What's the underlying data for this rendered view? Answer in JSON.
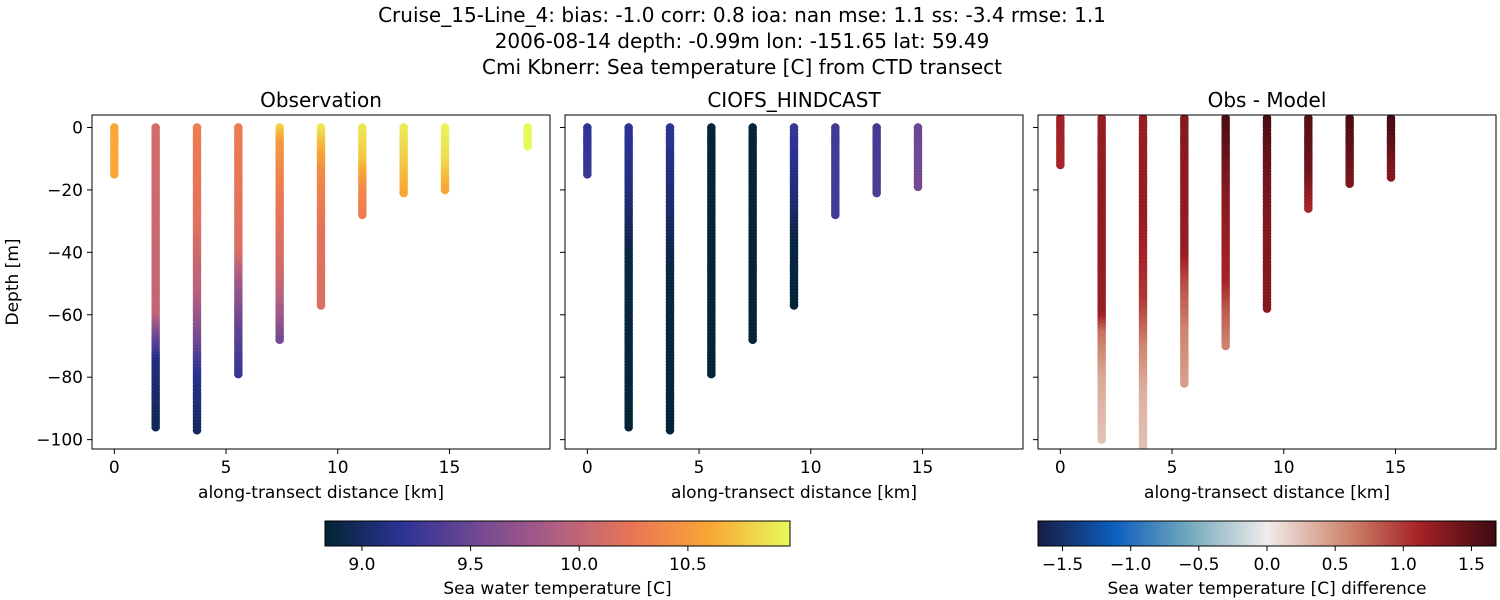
{
  "figure": {
    "title_lines": [
      "Cruise_15-Line_4: bias: -1.0  corr: 0.8  ioa: nan  mse: 1.1  ss: -3.4  rmse: 1.1",
      "2006-08-14 depth: -0.99m lon: -151.65 lat: 59.49",
      "Cmi Kbnerr: Sea temperature [C] from CTD transect"
    ]
  },
  "chart_data": [
    {
      "type": "scatter",
      "title": "Observation",
      "xlabel": "along-transect distance [km]",
      "ylabel": "Depth [m]",
      "xlim": [
        -1,
        19.5
      ],
      "ylim": [
        -103,
        4
      ],
      "xticks": [
        0,
        5,
        10,
        15
      ],
      "yticks": [
        0,
        -20,
        -40,
        -60,
        -80,
        -100
      ],
      "colormap": "thermal",
      "clim": [
        8.83,
        10.97
      ],
      "profiles": [
        {
          "x": 0.0,
          "max_depth": -15,
          "stops": [
            [
              0,
              10.6
            ],
            [
              -15,
              10.6
            ]
          ]
        },
        {
          "x": 1.85,
          "max_depth": -96,
          "stops": [
            [
              0,
              10.1
            ],
            [
              -60,
              10.0
            ],
            [
              -66,
              9.6
            ],
            [
              -75,
              9.1
            ],
            [
              -96,
              8.95
            ]
          ]
        },
        {
          "x": 3.7,
          "max_depth": -97,
          "stops": [
            [
              0,
              10.3
            ],
            [
              -30,
              10.2
            ],
            [
              -55,
              9.9
            ],
            [
              -70,
              9.5
            ],
            [
              -80,
              9.15
            ],
            [
              -97,
              9.0
            ]
          ]
        },
        {
          "x": 5.55,
          "max_depth": -79,
          "stops": [
            [
              0,
              10.3
            ],
            [
              -40,
              10.15
            ],
            [
              -50,
              9.8
            ],
            [
              -65,
              9.45
            ],
            [
              -79,
              9.25
            ]
          ]
        },
        {
          "x": 7.4,
          "max_depth": -68,
          "stops": [
            [
              0,
              10.8
            ],
            [
              -5,
              10.5
            ],
            [
              -20,
              10.3
            ],
            [
              -50,
              10.05
            ],
            [
              -60,
              9.8
            ],
            [
              -68,
              9.55
            ]
          ]
        },
        {
          "x": 9.25,
          "max_depth": -57,
          "stops": [
            [
              0,
              10.9
            ],
            [
              -5,
              10.7
            ],
            [
              -15,
              10.4
            ],
            [
              -35,
              10.2
            ],
            [
              -57,
              10.15
            ]
          ]
        },
        {
          "x": 11.1,
          "max_depth": -28,
          "stops": [
            [
              0,
              10.9
            ],
            [
              -10,
              10.75
            ],
            [
              -20,
              10.4
            ],
            [
              -28,
              10.3
            ]
          ]
        },
        {
          "x": 12.95,
          "max_depth": -21,
          "stops": [
            [
              0,
              10.9
            ],
            [
              -8,
              10.8
            ],
            [
              -21,
              10.6
            ]
          ]
        },
        {
          "x": 14.8,
          "max_depth": -20,
          "stops": [
            [
              0,
              10.95
            ],
            [
              -10,
              10.85
            ],
            [
              -20,
              10.6
            ]
          ]
        },
        {
          "x": 18.5,
          "max_depth": -6,
          "stops": [
            [
              0,
              10.97
            ],
            [
              -6,
              10.97
            ]
          ]
        }
      ]
    },
    {
      "type": "scatter",
      "title": "CIOFS_HINDCAST",
      "xlabel": "along-transect distance [km]",
      "xlim": [
        -1,
        19.5
      ],
      "ylim": [
        -103,
        4
      ],
      "xticks": [
        0,
        5,
        10,
        15
      ],
      "colormap": "thermal",
      "clim": [
        8.83,
        10.97
      ],
      "profiles": [
        {
          "x": 0.0,
          "max_depth": -15,
          "stops": [
            [
              0,
              9.2
            ],
            [
              -15,
              9.25
            ]
          ]
        },
        {
          "x": 1.85,
          "max_depth": -96,
          "stops": [
            [
              0,
              9.2
            ],
            [
              -20,
              9.1
            ],
            [
              -40,
              8.9
            ],
            [
              -96,
              8.85
            ]
          ]
        },
        {
          "x": 3.7,
          "max_depth": -97,
          "stops": [
            [
              0,
              9.2
            ],
            [
              -25,
              9.05
            ],
            [
              -45,
              8.9
            ],
            [
              -97,
              8.85
            ]
          ]
        },
        {
          "x": 5.55,
          "max_depth": -79,
          "stops": [
            [
              0,
              8.85
            ],
            [
              -79,
              8.85
            ]
          ]
        },
        {
          "x": 7.4,
          "max_depth": -68,
          "stops": [
            [
              0,
              8.85
            ],
            [
              -68,
              8.85
            ]
          ]
        },
        {
          "x": 9.25,
          "max_depth": -57,
          "stops": [
            [
              0,
              9.25
            ],
            [
              -25,
              9.05
            ],
            [
              -35,
              8.9
            ],
            [
              -57,
              8.85
            ]
          ]
        },
        {
          "x": 11.1,
          "max_depth": -28,
          "stops": [
            [
              0,
              9.3
            ],
            [
              -28,
              9.3
            ]
          ]
        },
        {
          "x": 12.95,
          "max_depth": -21,
          "stops": [
            [
              0,
              9.3
            ],
            [
              -21,
              9.35
            ]
          ]
        },
        {
          "x": 14.8,
          "max_depth": -19,
          "stops": [
            [
              0,
              9.5
            ],
            [
              -19,
              9.55
            ]
          ]
        }
      ]
    },
    {
      "type": "scatter",
      "title": "Obs - Model",
      "xlabel": "along-transect distance [km]",
      "xlim": [
        -1,
        19.5
      ],
      "ylim": [
        -103,
        4
      ],
      "xticks": [
        0,
        5,
        10,
        15
      ],
      "colormap": "balance",
      "clim": [
        -1.68,
        1.68
      ],
      "profiles": [
        {
          "x": 0.0,
          "max_depth": -12,
          "stops": [
            [
              3,
              1.15
            ],
            [
              -12,
              1.1
            ]
          ]
        },
        {
          "x": 1.85,
          "max_depth": -100,
          "stops": [
            [
              3,
              1.2
            ],
            [
              -30,
              1.25
            ],
            [
              -60,
              1.2
            ],
            [
              -66,
              0.7
            ],
            [
              -80,
              0.4
            ],
            [
              -100,
              0.25
            ]
          ]
        },
        {
          "x": 3.7,
          "max_depth": -104,
          "stops": [
            [
              3,
              1.2
            ],
            [
              -30,
              1.2
            ],
            [
              -55,
              1.0
            ],
            [
              -70,
              0.6
            ],
            [
              -85,
              0.35
            ],
            [
              -104,
              0.25
            ]
          ]
        },
        {
          "x": 5.55,
          "max_depth": -82,
          "stops": [
            [
              3,
              1.3
            ],
            [
              -40,
              1.2
            ],
            [
              -50,
              0.9
            ],
            [
              -65,
              0.6
            ],
            [
              -82,
              0.45
            ]
          ]
        },
        {
          "x": 7.4,
          "max_depth": -70,
          "stops": [
            [
              3,
              1.6
            ],
            [
              -5,
              1.5
            ],
            [
              -20,
              1.3
            ],
            [
              -50,
              1.1
            ],
            [
              -60,
              0.8
            ],
            [
              -70,
              0.6
            ]
          ]
        },
        {
          "x": 9.25,
          "max_depth": -58,
          "stops": [
            [
              3,
              1.6
            ],
            [
              -15,
              1.4
            ],
            [
              -35,
              1.3
            ],
            [
              -58,
              1.3
            ]
          ]
        },
        {
          "x": 11.1,
          "max_depth": -26,
          "stops": [
            [
              3,
              1.55
            ],
            [
              -15,
              1.4
            ],
            [
              -26,
              1.1
            ]
          ]
        },
        {
          "x": 12.95,
          "max_depth": -18,
          "stops": [
            [
              3,
              1.6
            ],
            [
              -18,
              1.35
            ]
          ]
        },
        {
          "x": 14.8,
          "max_depth": -16,
          "stops": [
            [
              3,
              1.65
            ],
            [
              -16,
              1.3
            ]
          ]
        }
      ]
    }
  ],
  "colorbars": [
    {
      "label": "Sea water temperature [C]",
      "ticks": [
        "9.0",
        "9.5",
        "10.0",
        "10.5"
      ],
      "tick_values": [
        9.0,
        9.5,
        10.0,
        10.5
      ],
      "clim": [
        8.83,
        10.97
      ],
      "colormap": "thermal"
    },
    {
      "label": "Sea water temperature [C] difference",
      "ticks": [
        "−1.5",
        "−1.0",
        "−0.5",
        "0.0",
        "0.5",
        "1.0",
        "1.5"
      ],
      "tick_values": [
        -1.5,
        -1.0,
        -0.5,
        0.0,
        0.5,
        1.0,
        1.5
      ],
      "clim": [
        -1.68,
        1.68
      ],
      "colormap": "balance"
    }
  ],
  "colormaps": {
    "thermal": [
      "#042333",
      "#2c3395",
      "#744992",
      "#b15f82",
      "#eb7655",
      "#f8a936",
      "#e8fa5b"
    ],
    "balance": [
      "#181c43",
      "#0c5ebe",
      "#75aabe",
      "#f1eceb",
      "#d08b73",
      "#a52125",
      "#3c0912"
    ]
  }
}
